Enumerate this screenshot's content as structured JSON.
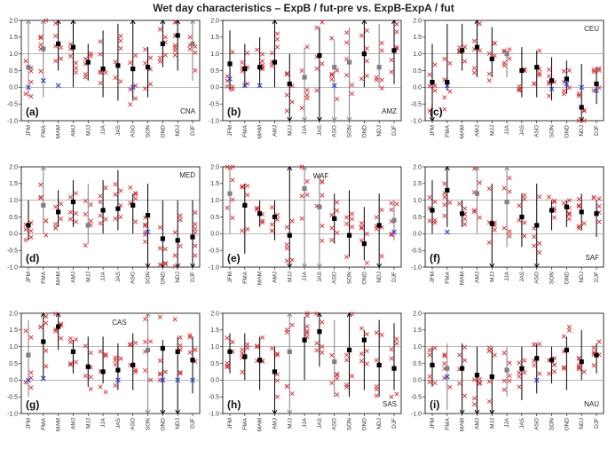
{
  "chart_data": {
    "type": "errorbar-panels",
    "title": "Wet day characteristics – ExpB / fut-pre vs. ExpB-ExpA / fut",
    "ylim": [
      -1.0,
      2.0
    ],
    "yticks": [
      "-1.0",
      "-0.5",
      "0.0",
      "0.5",
      "1.0",
      "1.5",
      "2.0"
    ],
    "reference_lines": [
      0,
      1
    ],
    "categories": [
      "JFM",
      "FMA",
      "MAM",
      "AMJ",
      "MJJ",
      "JJA",
      "JAS",
      "ASO",
      "SON",
      "OND",
      "NDJ",
      "DJF"
    ],
    "colors": {
      "accent": "#e8262d",
      "marker_black": "#000000",
      "marker_grey": "#808080",
      "cross_blue": "#2a3fe0",
      "frame": "#000000"
    },
    "panels": [
      {
        "label": "(a)",
        "region": "CNA",
        "region_pos": "bottom-right",
        "values": [
          0.6,
          1.15,
          1.3,
          1.2,
          0.75,
          0.55,
          0.65,
          0.55,
          0.6,
          1.3,
          1.55,
          1.3
        ],
        "grey": [
          true,
          true,
          false,
          false,
          false,
          false,
          false,
          false,
          false,
          false,
          false,
          true
        ],
        "err_low": [
          -0.3,
          -0.3,
          0.5,
          0.0,
          0.2,
          -0.3,
          -0.4,
          -0.4,
          -0.3,
          0.6,
          0.5,
          0.2
        ],
        "err_high": [
          2.0,
          2.0,
          2.0,
          2.0,
          1.3,
          1.7,
          1.9,
          2.0,
          1.2,
          2.0,
          2.0,
          2.0
        ],
        "blue": [
          0.0,
          0.2,
          0.05,
          null,
          null,
          null,
          null,
          0.0,
          null,
          null,
          null,
          null
        ]
      },
      {
        "label": "(b)",
        "region": "AMZ",
        "region_pos": "bottom-right",
        "values": [
          0.7,
          0.55,
          0.6,
          0.75,
          0.1,
          0.3,
          0.95,
          0.6,
          0.75,
          1.0,
          0.6,
          1.1
        ],
        "grey": [
          false,
          false,
          false,
          false,
          false,
          true,
          false,
          true,
          true,
          false,
          true,
          false
        ],
        "err_low": [
          -0.1,
          0.0,
          0.0,
          0.0,
          -1.0,
          -1.0,
          -1.0,
          -1.0,
          -1.0,
          0.0,
          0.0,
          0.1
        ],
        "err_high": [
          1.7,
          1.3,
          1.5,
          2.0,
          1.0,
          1.2,
          1.8,
          1.4,
          1.8,
          2.0,
          1.9,
          2.0
        ],
        "blue": [
          0.25,
          0.05,
          0.05,
          null,
          null,
          null,
          null,
          0.05,
          null,
          null,
          null,
          null
        ]
      },
      {
        "label": "(c)",
        "region": "CEU",
        "region_pos": "top-right",
        "values": [
          0.15,
          0.15,
          1.1,
          1.2,
          0.85,
          1.0,
          0.5,
          0.6,
          0.2,
          0.25,
          -0.6,
          0.1
        ],
        "grey": [
          false,
          false,
          false,
          false,
          false,
          true,
          false,
          false,
          false,
          false,
          false,
          false
        ],
        "err_low": [
          -1.0,
          -0.1,
          0.5,
          0.3,
          0.3,
          0.3,
          -0.3,
          -0.3,
          -0.4,
          -0.2,
          -1.0,
          -0.5
        ],
        "err_high": [
          1.3,
          1.9,
          1.9,
          2.0,
          1.8,
          1.1,
          1.2,
          1.1,
          0.9,
          0.8,
          0.7,
          0.6
        ],
        "blue": [
          0.15,
          0.05,
          null,
          null,
          null,
          null,
          null,
          null,
          -0.05,
          0.1,
          0.0,
          -0.1
        ]
      },
      {
        "label": "(d)",
        "region": "MED",
        "region_pos": "top-right",
        "values": [
          0.25,
          0.85,
          0.65,
          0.95,
          0.25,
          0.7,
          0.75,
          0.85,
          0.55,
          -0.15,
          -0.2,
          -0.1
        ],
        "grey": [
          false,
          true,
          false,
          false,
          true,
          false,
          false,
          false,
          false,
          false,
          false,
          false
        ],
        "err_low": [
          -0.2,
          0.0,
          0.2,
          0.2,
          -0.3,
          0.0,
          0.1,
          0.0,
          -1.0,
          -1.0,
          -1.0,
          -1.0
        ],
        "err_high": [
          1.0,
          2.0,
          1.3,
          1.6,
          1.5,
          1.6,
          1.9,
          1.2,
          1.5,
          1.0,
          1.0,
          1.0
        ],
        "blue": [
          null,
          null,
          null,
          null,
          null,
          null,
          null,
          null,
          0.05,
          null,
          null,
          null
        ]
      },
      {
        "label": "(e)",
        "region": "WAF",
        "region_pos": "top-center",
        "values": [
          1.2,
          0.85,
          0.6,
          0.5,
          -0.05,
          1.35,
          0.8,
          0.45,
          -0.05,
          -0.3,
          0.25,
          0.4
        ],
        "grey": [
          true,
          false,
          false,
          false,
          false,
          true,
          true,
          false,
          false,
          false,
          false,
          true
        ],
        "err_low": [
          0.0,
          -0.6,
          0.2,
          -0.2,
          -1.0,
          -1.0,
          -1.0,
          -0.3,
          -0.7,
          -0.8,
          -1.0,
          -0.2
        ],
        "err_high": [
          2.0,
          1.5,
          1.0,
          1.0,
          2.0,
          2.0,
          1.8,
          1.2,
          1.3,
          0.8,
          1.2,
          1.0
        ],
        "blue": [
          null,
          null,
          null,
          null,
          null,
          null,
          null,
          null,
          null,
          null,
          null,
          0.05
        ]
      },
      {
        "label": "(f)",
        "region": "SAF",
        "region_pos": "bottom-right",
        "values": [
          0.7,
          1.3,
          0.6,
          1.2,
          0.3,
          0.95,
          0.5,
          0.25,
          0.7,
          0.8,
          0.65,
          0.6
        ],
        "grey": [
          false,
          false,
          false,
          true,
          false,
          true,
          false,
          false,
          false,
          false,
          false,
          false
        ],
        "err_low": [
          0.0,
          0.2,
          0.2,
          0.0,
          -1.0,
          -0.4,
          -0.4,
          -1.0,
          0.1,
          0.2,
          0.1,
          -0.1
        ],
        "err_high": [
          1.6,
          2.0,
          1.0,
          2.0,
          1.5,
          2.0,
          1.2,
          1.5,
          1.0,
          1.0,
          1.2,
          1.0
        ],
        "blue": [
          null,
          0.05,
          null,
          null,
          null,
          null,
          null,
          null,
          null,
          null,
          null,
          null
        ]
      },
      {
        "label": "(g)",
        "region": "CAS",
        "region_pos": "top-center",
        "values": [
          0.75,
          1.15,
          1.6,
          0.85,
          0.4,
          0.25,
          0.3,
          0.45,
          0.9,
          0.95,
          0.85,
          0.6
        ],
        "grey": [
          true,
          false,
          false,
          false,
          false,
          false,
          false,
          false,
          true,
          false,
          false,
          false
        ],
        "err_low": [
          -0.5,
          0.0,
          0.9,
          0.2,
          -0.2,
          -0.1,
          -0.3,
          -0.3,
          -1.0,
          -1.0,
          -1.0,
          -0.4
        ],
        "err_high": [
          1.8,
          2.0,
          2.0,
          1.2,
          1.3,
          1.3,
          1.1,
          1.4,
          2.0,
          1.2,
          1.3,
          1.3
        ],
        "blue": [
          0.0,
          0.05,
          null,
          null,
          null,
          null,
          0.0,
          null,
          null,
          0.0,
          0.0,
          0.0
        ]
      },
      {
        "label": "(h)",
        "region": "SAS",
        "region_pos": "bottom-right",
        "values": [
          0.85,
          0.7,
          0.6,
          0.25,
          0.85,
          1.2,
          1.45,
          0.55,
          0.9,
          1.2,
          0.45,
          0.35
        ],
        "grey": [
          false,
          false,
          false,
          false,
          true,
          false,
          false,
          true,
          false,
          false,
          false,
          false
        ],
        "err_low": [
          0.2,
          0.0,
          -0.3,
          -1.0,
          -1.0,
          0.0,
          0.4,
          -0.5,
          -0.5,
          -0.3,
          -0.5,
          -0.3
        ],
        "err_high": [
          1.4,
          1.4,
          1.3,
          1.0,
          2.0,
          1.9,
          2.0,
          1.8,
          2.0,
          1.5,
          1.8,
          1.7
        ],
        "blue": [
          null,
          null,
          null,
          null,
          null,
          null,
          null,
          null,
          null,
          null,
          null,
          null
        ]
      },
      {
        "label": "(i)",
        "region": "NAU",
        "region_pos": "bottom-right",
        "values": [
          0.45,
          0.35,
          0.35,
          0.15,
          0.1,
          0.3,
          0.35,
          0.65,
          0.6,
          0.9,
          0.55,
          0.75
        ],
        "grey": [
          false,
          true,
          false,
          false,
          false,
          true,
          false,
          false,
          false,
          false,
          false,
          false
        ],
        "err_low": [
          -0.2,
          -0.9,
          -1.0,
          -1.0,
          -1.0,
          -0.5,
          -0.6,
          -0.4,
          -0.1,
          -0.3,
          0.0,
          0.2
        ],
        "err_high": [
          1.0,
          1.1,
          1.1,
          1.0,
          1.0,
          1.0,
          1.0,
          1.1,
          1.0,
          1.3,
          1.5,
          1.1
        ],
        "blue": [
          null,
          0.1,
          null,
          null,
          null,
          null,
          null,
          0.0,
          null,
          null,
          null,
          null
        ]
      }
    ]
  }
}
